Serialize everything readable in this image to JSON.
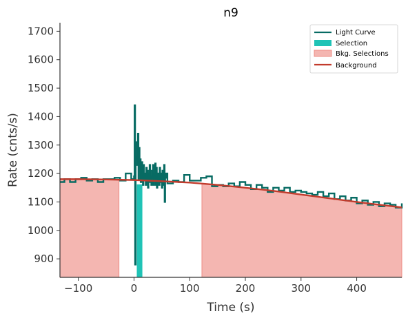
{
  "colors": {
    "light_curve": "#076b63",
    "selection": "#20c3b6",
    "bkg_selection_fill": "#f4b6b1",
    "bkg_selection_edge": "#ee8d85",
    "background_line": "#c23b2c"
  },
  "chart_data": {
    "type": "line",
    "title": "n9",
    "xlabel": "Time (s)",
    "ylabel": "Rate (cnts/s)",
    "xlim": [
      -133,
      481
    ],
    "ylim": [
      835,
      1730
    ],
    "xticks": [
      -100,
      0,
      100,
      200,
      300,
      400
    ],
    "yticks": [
      900,
      1000,
      1100,
      1200,
      1300,
      1400,
      1500,
      1600,
      1700
    ],
    "legend": {
      "position": "top-right",
      "entries": [
        "Light Curve",
        "Selection",
        "Bkg. Selections",
        "Background"
      ]
    },
    "series": [
      {
        "name": "Light Curve",
        "kind": "step",
        "x": [
          -133,
          -125,
          -115,
          -105,
          -95,
          -85,
          -75,
          -65,
          -55,
          -45,
          -35,
          -25,
          -15,
          -5,
          0,
          1,
          2,
          3,
          4,
          5,
          6,
          7,
          8,
          9,
          10,
          11,
          12,
          13,
          14,
          15,
          16,
          17,
          18,
          19,
          20,
          21,
          22,
          23,
          24,
          25,
          26,
          27,
          28,
          29,
          30,
          31,
          32,
          33,
          34,
          35,
          36,
          37,
          38,
          39,
          40,
          41,
          42,
          43,
          44,
          45,
          46,
          47,
          48,
          49,
          50,
          51,
          52,
          53,
          54,
          55,
          56,
          57,
          58,
          59,
          60,
          70,
          80,
          90,
          100,
          110,
          120,
          130,
          140,
          150,
          160,
          170,
          180,
          190,
          200,
          210,
          220,
          230,
          240,
          250,
          260,
          270,
          280,
          290,
          300,
          310,
          320,
          330,
          340,
          350,
          360,
          370,
          380,
          390,
          400,
          410,
          420,
          430,
          440,
          450,
          460,
          470,
          481
        ],
        "y": [
          1170,
          1180,
          1170,
          1180,
          1185,
          1175,
          1180,
          1170,
          1180,
          1180,
          1185,
          1175,
          1200,
          1180,
          1190,
          1440,
          880,
          1260,
          1250,
          1310,
          1230,
          1340,
          1180,
          1290,
          1220,
          1250,
          1170,
          1230,
          1240,
          1180,
          1160,
          1230,
          1180,
          1200,
          1190,
          1160,
          1220,
          1180,
          1210,
          1150,
          1200,
          1170,
          1230,
          1180,
          1190,
          1160,
          1210,
          1180,
          1230,
          1160,
          1200,
          1175,
          1235,
          1160,
          1220,
          1150,
          1190,
          1200,
          1180,
          1160,
          1220,
          1170,
          1200,
          1180,
          1150,
          1210,
          1170,
          1160,
          1230,
          1100,
          1200,
          1185,
          1190,
          1200,
          1165,
          1175,
          1170,
          1195,
          1175,
          1175,
          1185,
          1190,
          1155,
          1160,
          1155,
          1165,
          1155,
          1170,
          1160,
          1145,
          1160,
          1150,
          1135,
          1150,
          1140,
          1150,
          1135,
          1140,
          1135,
          1130,
          1125,
          1135,
          1120,
          1130,
          1110,
          1120,
          1105,
          1115,
          1095,
          1105,
          1090,
          1100,
          1085,
          1095,
          1090,
          1080,
          1095
        ]
      },
      {
        "name": "Background",
        "kind": "line",
        "x": [
          -133,
          -100,
          -50,
          0,
          50,
          100,
          150,
          200,
          250,
          300,
          350,
          400,
          450,
          481
        ],
        "y": [
          1180,
          1180,
          1179,
          1177,
          1173,
          1168,
          1160,
          1150,
          1139,
          1126,
          1113,
          1100,
          1088,
          1081
        ]
      }
    ],
    "selection": [
      5,
      15
    ],
    "bkg_selections": [
      [
        -133,
        -27
      ],
      [
        122,
        481
      ]
    ]
  }
}
